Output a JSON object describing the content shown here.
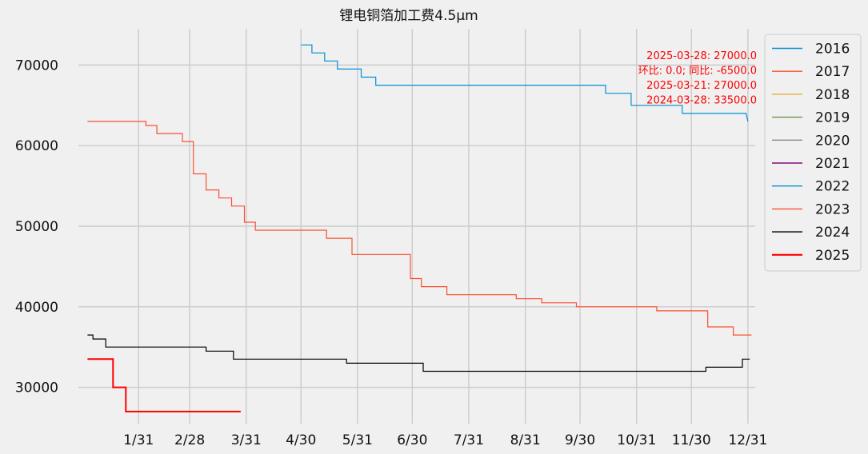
{
  "chart_data": {
    "type": "line",
    "title": "锂电铜箔加工费4.5μm",
    "xlabel": "",
    "ylabel": "",
    "x_axis": {
      "ticks": [
        {
          "day": 31,
          "label": "1/31"
        },
        {
          "day": 59,
          "label": "2/28"
        },
        {
          "day": 90,
          "label": "3/31"
        },
        {
          "day": 120,
          "label": "4/30"
        },
        {
          "day": 151,
          "label": "5/31"
        },
        {
          "day": 181,
          "label": "6/30"
        },
        {
          "day": 212,
          "label": "7/31"
        },
        {
          "day": 243,
          "label": "8/31"
        },
        {
          "day": 273,
          "label": "9/30"
        },
        {
          "day": 304,
          "label": "10/31"
        },
        {
          "day": 334,
          "label": "11/30"
        },
        {
          "day": 365,
          "label": "12/31"
        }
      ]
    },
    "y_axis": {
      "ticks": [
        30000,
        40000,
        50000,
        60000,
        70000
      ],
      "ylim": [
        25500,
        74500
      ]
    },
    "grid": true,
    "legend_position": "outside-right",
    "annotations": [
      "2025-03-28: 27000.0",
      "环比: 0.0; 同比: -6500.0",
      "2025-03-21: 27000.0",
      "2024-03-28: 33500.0"
    ],
    "annotation_color": "#ff0000",
    "series": [
      {
        "name": "2016",
        "color": "#008fd5",
        "width": 1.2,
        "points": []
      },
      {
        "name": "2017",
        "color": "#fc4f30",
        "width": 1.2,
        "points": []
      },
      {
        "name": "2018",
        "color": "#e5ae38",
        "width": 1.2,
        "points": []
      },
      {
        "name": "2019",
        "color": "#6d904f",
        "width": 1.2,
        "points": []
      },
      {
        "name": "2020",
        "color": "#8b8b8b",
        "width": 1.2,
        "points": []
      },
      {
        "name": "2021",
        "color": "#810f7c",
        "width": 1.2,
        "points": []
      },
      {
        "name": "2022",
        "color": "#008fd5",
        "width": 1.2,
        "points": [
          [
            120,
            72500
          ],
          [
            126,
            72500
          ],
          [
            126,
            71500
          ],
          [
            133,
            71500
          ],
          [
            133,
            70500
          ],
          [
            140,
            70500
          ],
          [
            140,
            69500
          ],
          [
            153,
            69500
          ],
          [
            153,
            68500
          ],
          [
            161,
            68500
          ],
          [
            161,
            67500
          ],
          [
            287,
            67500
          ],
          [
            287,
            66500
          ],
          [
            301,
            66500
          ],
          [
            301,
            65000
          ],
          [
            329,
            65000
          ],
          [
            329,
            64000
          ],
          [
            364,
            64000
          ],
          [
            365,
            63000
          ]
        ]
      },
      {
        "name": "2023",
        "color": "#fc4f30",
        "width": 1.2,
        "points": [
          [
            3,
            63000
          ],
          [
            35,
            63000
          ],
          [
            35,
            62500
          ],
          [
            41,
            62500
          ],
          [
            41,
            61500
          ],
          [
            55,
            61500
          ],
          [
            55,
            60500
          ],
          [
            61,
            60500
          ],
          [
            61,
            56500
          ],
          [
            68,
            56500
          ],
          [
            68,
            54500
          ],
          [
            75,
            54500
          ],
          [
            75,
            53500
          ],
          [
            82,
            53500
          ],
          [
            82,
            52500
          ],
          [
            89,
            52500
          ],
          [
            89,
            50500
          ],
          [
            95,
            50500
          ],
          [
            95,
            49500
          ],
          [
            134,
            49500
          ],
          [
            134,
            48500
          ],
          [
            148,
            48500
          ],
          [
            148,
            46500
          ],
          [
            180,
            46500
          ],
          [
            180,
            43500
          ],
          [
            186,
            43500
          ],
          [
            186,
            42500
          ],
          [
            200,
            42500
          ],
          [
            200,
            41500
          ],
          [
            238,
            41500
          ],
          [
            238,
            41000
          ],
          [
            252,
            41000
          ],
          [
            252,
            40500
          ],
          [
            271,
            40500
          ],
          [
            271,
            40000
          ],
          [
            315,
            40000
          ],
          [
            315,
            39500
          ],
          [
            343,
            39500
          ],
          [
            343,
            37500
          ],
          [
            357,
            37500
          ],
          [
            357,
            36500
          ],
          [
            367,
            36500
          ]
        ]
      },
      {
        "name": "2024",
        "color": "#000000",
        "width": 1.2,
        "points": [
          [
            3,
            36500
          ],
          [
            6,
            36500
          ],
          [
            6,
            36000
          ],
          [
            13,
            36000
          ],
          [
            13,
            35000
          ],
          [
            68,
            35000
          ],
          [
            68,
            34500
          ],
          [
            83,
            34500
          ],
          [
            83,
            33500
          ],
          [
            145,
            33500
          ],
          [
            145,
            33000
          ],
          [
            187,
            33000
          ],
          [
            187,
            32000
          ],
          [
            342,
            32000
          ],
          [
            342,
            32500
          ],
          [
            362,
            32500
          ],
          [
            362,
            33500
          ],
          [
            366,
            33500
          ]
        ]
      },
      {
        "name": "2025",
        "color": "#ff0000",
        "width": 2.0,
        "points": [
          [
            3,
            33500
          ],
          [
            17,
            33500
          ],
          [
            17,
            30000
          ],
          [
            24,
            30000
          ],
          [
            24,
            27000
          ],
          [
            87,
            27000
          ]
        ]
      }
    ]
  }
}
